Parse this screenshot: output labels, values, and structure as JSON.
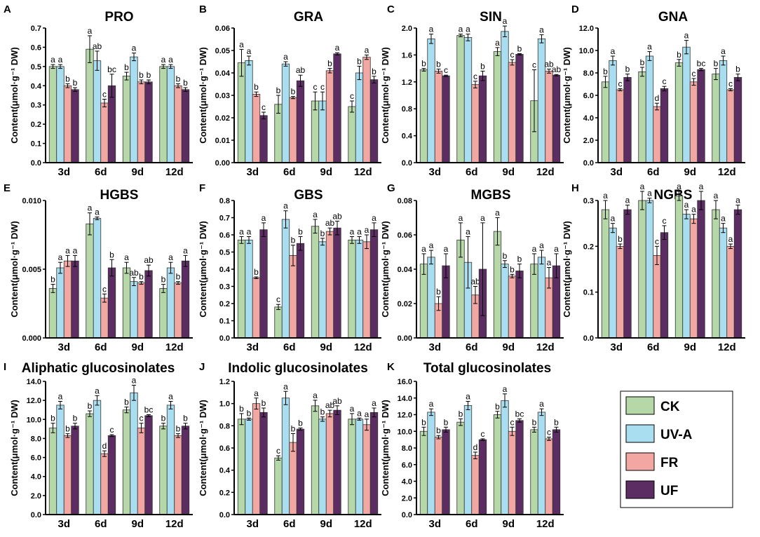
{
  "figure": {
    "ylabel": "Content(μmol·g⁻¹ DW)",
    "groups": [
      "3d",
      "6d",
      "9d",
      "12d"
    ],
    "legend": [
      {
        "label": "CK",
        "color": "#b6d7a8"
      },
      {
        "label": "UV-A",
        "color": "#a9def0"
      },
      {
        "label": "FR",
        "color": "#f2a7a3"
      },
      {
        "label": "UF",
        "color": "#5c2d62"
      }
    ]
  },
  "chart_data": [
    {
      "type": "bar",
      "letter": "A",
      "title": "PRO",
      "ylim": [
        0,
        0.7
      ],
      "ticks": [
        "0.0",
        "0.1",
        "0.2",
        "0.3",
        "0.4",
        "0.5",
        "0.6",
        "0.7"
      ],
      "categories": [
        "3d",
        "6d",
        "9d",
        "12d"
      ],
      "series": [
        {
          "name": "CK",
          "values": [
            0.5,
            0.59,
            0.45,
            0.5
          ],
          "err": [
            0.01,
            0.07,
            0.02,
            0.01
          ]
        },
        {
          "name": "UV-A",
          "values": [
            0.5,
            0.53,
            0.55,
            0.5
          ],
          "err": [
            0.01,
            0.05,
            0.02,
            0.01
          ]
        },
        {
          "name": "FR",
          "values": [
            0.4,
            0.31,
            0.42,
            0.4
          ],
          "err": [
            0.01,
            0.02,
            0.01,
            0.01
          ]
        },
        {
          "name": "UF",
          "values": [
            0.38,
            0.4,
            0.42,
            0.38
          ],
          "err": [
            0.01,
            0.06,
            0.01,
            0.01
          ]
        }
      ],
      "letters": [
        [
          "a",
          "a",
          "b",
          "b"
        ],
        [
          "a",
          "ab",
          "c",
          "bc"
        ],
        [
          "b",
          "a",
          "b",
          "b"
        ],
        [
          "a",
          "a",
          "b",
          "b"
        ]
      ]
    },
    {
      "type": "bar",
      "letter": "B",
      "title": "GRA",
      "ylim": [
        0,
        0.06
      ],
      "ticks": [
        "0.00",
        "0.01",
        "0.02",
        "0.03",
        "0.04",
        "0.05",
        "0.06"
      ],
      "categories": [
        "3d",
        "6d",
        "9d",
        "12d"
      ],
      "series": [
        {
          "name": "CK",
          "values": [
            0.0445,
            0.026,
            0.0275,
            0.025
          ],
          "err": [
            0.006,
            0.004,
            0.004,
            0.0025
          ]
        },
        {
          "name": "UV-A",
          "values": [
            0.0455,
            0.044,
            0.0275,
            0.04
          ],
          "err": [
            0.002,
            0.001,
            0.004,
            0.003
          ]
        },
        {
          "name": "FR",
          "values": [
            0.0305,
            0.029,
            0.041,
            0.047
          ],
          "err": [
            0.001,
            0.0005,
            0.001,
            0.001
          ]
        },
        {
          "name": "UF",
          "values": [
            0.021,
            0.0365,
            0.0485,
            0.037
          ],
          "err": [
            0.0015,
            0.0025,
            0.0005,
            0.0015
          ]
        }
      ],
      "letters": [
        [
          "a",
          "a",
          "b",
          "c"
        ],
        [
          "b",
          "a",
          "b",
          "ab"
        ],
        [
          "c",
          "c",
          "b",
          "a"
        ],
        [
          "c",
          "b",
          "a",
          "b"
        ]
      ]
    },
    {
      "type": "bar",
      "letter": "C",
      "title": "SIN",
      "ylim": [
        0,
        2.0
      ],
      "ticks": [
        "0.0",
        "0.4",
        "0.8",
        "1.2",
        "1.6",
        "2.0"
      ],
      "categories": [
        "3d",
        "6d",
        "9d",
        "12d"
      ],
      "series": [
        {
          "name": "CK",
          "values": [
            1.38,
            1.89,
            1.65,
            0.92
          ],
          "err": [
            0.02,
            0.02,
            0.06,
            0.46
          ]
        },
        {
          "name": "UV-A",
          "values": [
            1.84,
            1.86,
            1.95,
            1.84
          ],
          "err": [
            0.07,
            0.05,
            0.08,
            0.06
          ]
        },
        {
          "name": "FR",
          "values": [
            1.36,
            1.16,
            1.49,
            1.36
          ],
          "err": [
            0.03,
            0.05,
            0.04,
            0.03
          ]
        },
        {
          "name": "UF",
          "values": [
            1.29,
            1.29,
            1.61,
            1.3
          ],
          "err": [
            0.01,
            0.07,
            0.01,
            0.01
          ]
        }
      ],
      "letters": [
        [
          "b",
          "a",
          "b",
          "c"
        ],
        [
          "a",
          "a",
          "c",
          "b"
        ],
        [
          "a",
          "a",
          "c",
          "b"
        ],
        [
          "c",
          "a",
          "ab",
          "ab"
        ]
      ]
    },
    {
      "type": "bar",
      "letter": "D",
      "title": "GNA",
      "ylim": [
        0,
        12.0
      ],
      "ticks": [
        "0.0",
        "2.0",
        "4.0",
        "6.0",
        "8.0",
        "10.0",
        "12.0"
      ],
      "categories": [
        "3d",
        "6d",
        "9d",
        "12d"
      ],
      "series": [
        {
          "name": "CK",
          "values": [
            7.2,
            8.1,
            8.9,
            7.9
          ],
          "err": [
            0.5,
            0.4,
            0.3,
            0.5
          ]
        },
        {
          "name": "UV-A",
          "values": [
            9.1,
            9.5,
            10.3,
            9.1
          ],
          "err": [
            0.4,
            0.4,
            0.6,
            0.4
          ]
        },
        {
          "name": "FR",
          "values": [
            6.5,
            5.0,
            7.2,
            6.5
          ],
          "err": [
            0.1,
            0.3,
            0.3,
            0.1
          ]
        },
        {
          "name": "UF",
          "values": [
            7.6,
            6.6,
            8.3,
            7.6
          ],
          "err": [
            0.3,
            0.2,
            0.1,
            0.3
          ]
        }
      ],
      "letters": [
        [
          "b",
          "a",
          "c",
          "b"
        ],
        [
          "b",
          "a",
          "d",
          "c"
        ],
        [
          "b",
          "a",
          "c",
          "bc"
        ],
        [
          "b",
          "a",
          "c",
          "b"
        ]
      ]
    },
    {
      "type": "bar",
      "letter": "E",
      "title": "HGBS",
      "ylim": [
        0,
        0.01
      ],
      "ticks": [
        "0.000",
        "0.005",
        "0.010"
      ],
      "categories": [
        "3d",
        "6d",
        "9d",
        "12d"
      ],
      "series": [
        {
          "name": "CK",
          "values": [
            0.0036,
            0.0083,
            0.0051,
            0.0036
          ],
          "err": [
            0.0003,
            0.0008,
            0.0004,
            0.0003
          ]
        },
        {
          "name": "UV-A",
          "values": [
            0.0051,
            0.0087,
            0.0041,
            0.0051
          ],
          "err": [
            0.0004,
            0.0001,
            0.0003,
            0.0004
          ]
        },
        {
          "name": "FR",
          "values": [
            0.0056,
            0.0029,
            0.004,
            0.004
          ],
          "err": [
            0.0004,
            0.0003,
            0.0001,
            0.0001
          ]
        },
        {
          "name": "UF",
          "values": [
            0.0056,
            0.0051,
            0.0049,
            0.0056
          ],
          "err": [
            0.0004,
            0.0006,
            0.0004,
            0.0004
          ]
        }
      ],
      "letters": [
        [
          "b",
          "a",
          "a",
          "a"
        ],
        [
          "a",
          "a",
          "c",
          "b"
        ],
        [
          "a",
          "ab",
          "b",
          "ab"
        ],
        [
          "b",
          "a",
          "b",
          "a"
        ]
      ]
    },
    {
      "type": "bar",
      "letter": "F",
      "title": "GBS",
      "ylim": [
        0,
        0.8
      ],
      "ticks": [
        "0.0",
        "0.1",
        "0.2",
        "0.3",
        "0.4",
        "0.5",
        "0.6",
        "0.7",
        "0.8"
      ],
      "categories": [
        "3d",
        "6d",
        "9d",
        "12d"
      ],
      "series": [
        {
          "name": "CK",
          "values": [
            0.57,
            0.18,
            0.65,
            0.57
          ],
          "err": [
            0.02,
            0.015,
            0.04,
            0.02
          ]
        },
        {
          "name": "UV-A",
          "values": [
            0.57,
            0.69,
            0.56,
            0.57
          ],
          "err": [
            0.02,
            0.05,
            0.02,
            0.02
          ]
        },
        {
          "name": "FR",
          "values": [
            0.35,
            0.48,
            0.62,
            0.56
          ],
          "err": [
            0.005,
            0.06,
            0.02,
            0.04
          ]
        },
        {
          "name": "UF",
          "values": [
            0.63,
            0.55,
            0.64,
            0.63
          ],
          "err": [
            0.04,
            0.04,
            0.04,
            0.04
          ]
        }
      ],
      "letters": [
        [
          "a",
          "a",
          "b",
          "a"
        ],
        [
          "c",
          "a",
          "b",
          "b"
        ],
        [
          "a",
          "b",
          "ab",
          "ab"
        ],
        [
          "a",
          "a",
          "a",
          "a"
        ]
      ]
    },
    {
      "type": "bar",
      "letter": "G",
      "title": "MGBS",
      "ylim": [
        0,
        0.08
      ],
      "ticks": [
        "0.00",
        "0.02",
        "0.04",
        "0.06",
        "0.08"
      ],
      "categories": [
        "3d",
        "6d",
        "9d",
        "12d"
      ],
      "series": [
        {
          "name": "CK",
          "values": [
            0.043,
            0.057,
            0.062,
            0.043
          ],
          "err": [
            0.006,
            0.01,
            0.008,
            0.006
          ]
        },
        {
          "name": "UV-A",
          "values": [
            0.047,
            0.044,
            0.043,
            0.047
          ],
          "err": [
            0.004,
            0.015,
            0.002,
            0.004
          ]
        },
        {
          "name": "FR",
          "values": [
            0.02,
            0.025,
            0.036,
            0.035
          ],
          "err": [
            0.004,
            0.005,
            0.001,
            0.006
          ]
        },
        {
          "name": "UF",
          "values": [
            0.042,
            0.04,
            0.039,
            0.042
          ],
          "err": [
            0.007,
            0.027,
            0.004,
            0.007
          ]
        }
      ],
      "letters": [
        [
          "a",
          "a",
          "b",
          "a"
        ],
        [
          "a",
          "a",
          "ab",
          "a"
        ],
        [
          "a",
          "b",
          "b",
          "b"
        ],
        [
          "a",
          "a",
          "a",
          "a"
        ]
      ]
    },
    {
      "type": "bar",
      "letter": "H",
      "title": "NGBS",
      "ylim": [
        0,
        0.3
      ],
      "ticks": [
        "0.0",
        "0.1",
        "0.2",
        "0.3"
      ],
      "categories": [
        "3d",
        "6d",
        "9d",
        "12d"
      ],
      "series": [
        {
          "name": "CK",
          "values": [
            0.28,
            0.3,
            0.31,
            0.28
          ],
          "err": [
            0.02,
            0.02,
            0.01,
            0.02
          ]
        },
        {
          "name": "UV-A",
          "values": [
            0.24,
            0.3,
            0.27,
            0.24
          ],
          "err": [
            0.01,
            0.005,
            0.01,
            0.01
          ]
        },
        {
          "name": "FR",
          "values": [
            0.2,
            0.18,
            0.26,
            0.2
          ],
          "err": [
            0.005,
            0.02,
            0.01,
            0.005
          ]
        },
        {
          "name": "UF",
          "values": [
            0.28,
            0.23,
            0.3,
            0.28
          ],
          "err": [
            0.01,
            0.015,
            0.02,
            0.01
          ]
        }
      ],
      "letters": [
        [
          "a",
          "a",
          "b",
          "a"
        ],
        [
          "a",
          "a",
          "c",
          "c"
        ],
        [
          "a",
          "a",
          "a",
          "a"
        ],
        [
          "a",
          "a",
          "a",
          "a"
        ]
      ]
    },
    {
      "type": "bar",
      "letter": "I",
      "title": "Aliphatic glucosinolates",
      "ylim": [
        0,
        14.0
      ],
      "ticks": [
        "0.0",
        "2.0",
        "4.0",
        "6.0",
        "8.0",
        "10.0",
        "12.0",
        "14.0"
      ],
      "categories": [
        "3d",
        "6d",
        "9d",
        "12d"
      ],
      "series": [
        {
          "name": "CK",
          "values": [
            9.1,
            10.6,
            11.0,
            9.3
          ],
          "err": [
            0.5,
            0.3,
            0.3,
            0.3
          ]
        },
        {
          "name": "UV-A",
          "values": [
            11.5,
            12.0,
            12.8,
            11.5
          ],
          "err": [
            0.4,
            0.5,
            0.8,
            0.4
          ]
        },
        {
          "name": "FR",
          "values": [
            8.3,
            6.4,
            9.1,
            8.3
          ],
          "err": [
            0.2,
            0.3,
            0.5,
            0.2
          ]
        },
        {
          "name": "UF",
          "values": [
            9.3,
            8.3,
            10.4,
            9.3
          ],
          "err": [
            0.3,
            0.1,
            0.1,
            0.3
          ]
        }
      ],
      "letters": [
        [
          "b",
          "a",
          "b",
          "b"
        ],
        [
          "b",
          "a",
          "d",
          "c"
        ],
        [
          "b",
          "a",
          "c",
          "bc"
        ],
        [
          "b",
          "a",
          "b",
          "b"
        ]
      ]
    },
    {
      "type": "bar",
      "letter": "J",
      "title": "Indolic glucosinolates",
      "ylim": [
        0,
        1.2
      ],
      "ticks": [
        "0.0",
        "0.2",
        "0.4",
        "0.6",
        "0.8",
        "1.0",
        "1.2"
      ],
      "categories": [
        "3d",
        "6d",
        "9d",
        "12d"
      ],
      "series": [
        {
          "name": "CK",
          "values": [
            0.86,
            0.51,
            0.98,
            0.86
          ],
          "err": [
            0.05,
            0.02,
            0.05,
            0.05
          ]
        },
        {
          "name": "UV-A",
          "values": [
            0.86,
            1.05,
            0.86,
            0.86
          ],
          "err": [
            0.01,
            0.06,
            0.02,
            0.01
          ]
        },
        {
          "name": "FR",
          "values": [
            1.0,
            0.65,
            0.91,
            0.81
          ],
          "err": [
            0.05,
            0.08,
            0.03,
            0.05
          ]
        },
        {
          "name": "UF",
          "values": [
            0.92,
            0.77,
            0.94,
            0.92
          ],
          "err": [
            0.04,
            0.01,
            0.04,
            0.04
          ]
        }
      ],
      "letters": [
        [
          "b",
          "b",
          "a",
          "b"
        ],
        [
          "c",
          "a",
          "b",
          "b"
        ],
        [
          "a",
          "b",
          "ab",
          "ab"
        ],
        [
          "a",
          "a",
          "a",
          "a"
        ]
      ]
    },
    {
      "type": "bar",
      "letter": "K",
      "title": "Total glucosinolates",
      "ylim": [
        0,
        16.0
      ],
      "ticks": [
        "0.0",
        "2.0",
        "4.0",
        "6.0",
        "8.0",
        "10.0",
        "12.0",
        "14.0",
        "16.0"
      ],
      "categories": [
        "3d",
        "6d",
        "9d",
        "12d"
      ],
      "series": [
        {
          "name": "CK",
          "values": [
            10.0,
            11.1,
            12.0,
            10.2
          ],
          "err": [
            0.5,
            0.4,
            0.4,
            0.3
          ]
        },
        {
          "name": "UV-A",
          "values": [
            12.3,
            13.1,
            13.7,
            12.3
          ],
          "err": [
            0.4,
            0.5,
            0.8,
            0.4
          ]
        },
        {
          "name": "FR",
          "values": [
            9.3,
            7.1,
            10.0,
            9.1
          ],
          "err": [
            0.2,
            0.4,
            0.5,
            0.2
          ]
        },
        {
          "name": "UF",
          "values": [
            10.2,
            9.0,
            11.3,
            10.2
          ],
          "err": [
            0.3,
            0.1,
            0.2,
            0.3
          ]
        }
      ],
      "letters": [
        [
          "b",
          "a",
          "b",
          "b"
        ],
        [
          "b",
          "a",
          "d",
          "c"
        ],
        [
          "b",
          "a",
          "c",
          "bc"
        ],
        [
          "b",
          "a",
          "c",
          "b"
        ]
      ]
    }
  ]
}
